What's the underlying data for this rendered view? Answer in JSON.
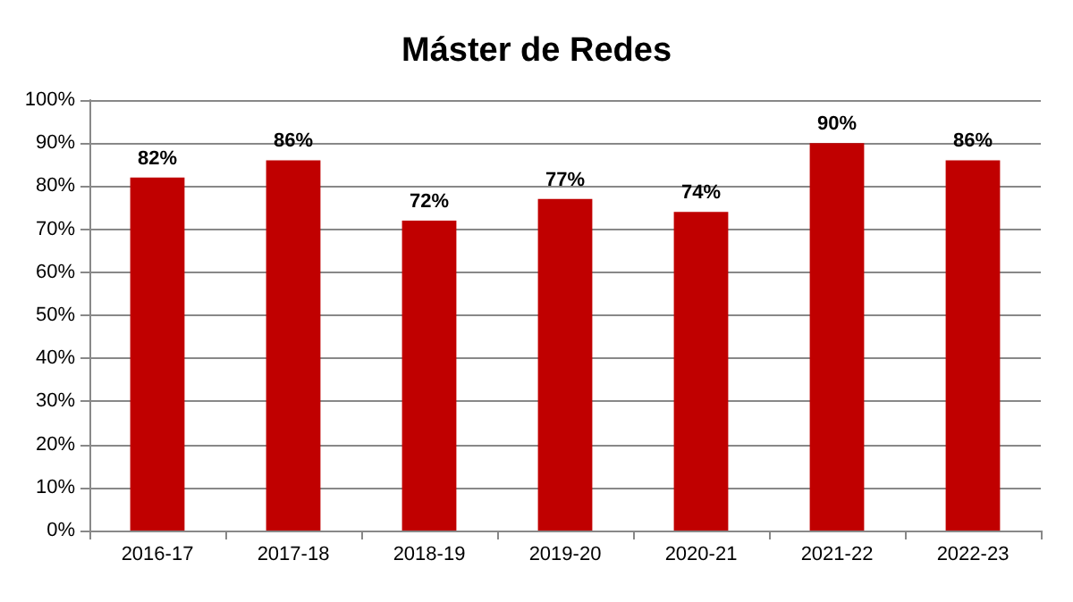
{
  "chart_data": {
    "type": "bar",
    "title": "Máster de Redes",
    "categories": [
      "2016-17",
      "2017-18",
      "2018-19",
      "2019-20",
      "2020-21",
      "2021-22",
      "2022-23"
    ],
    "values": [
      82,
      86,
      72,
      77,
      74,
      90,
      86
    ],
    "value_labels": [
      "82%",
      "86%",
      "72%",
      "77%",
      "74%",
      "90%",
      "86%"
    ],
    "color": "#c00000",
    "ylim": [
      0,
      100
    ],
    "yticks": [
      {
        "value": 0,
        "label": "0%"
      },
      {
        "value": 10,
        "label": "10%"
      },
      {
        "value": 20,
        "label": "20%"
      },
      {
        "value": 30,
        "label": "30%"
      },
      {
        "value": 40,
        "label": "40%"
      },
      {
        "value": 50,
        "label": "50%"
      },
      {
        "value": 60,
        "label": "60%"
      },
      {
        "value": 70,
        "label": "70%"
      },
      {
        "value": 80,
        "label": "80%"
      },
      {
        "value": 90,
        "label": "90%"
      },
      {
        "value": 100,
        "label": "100%"
      }
    ],
    "grid": "y"
  }
}
